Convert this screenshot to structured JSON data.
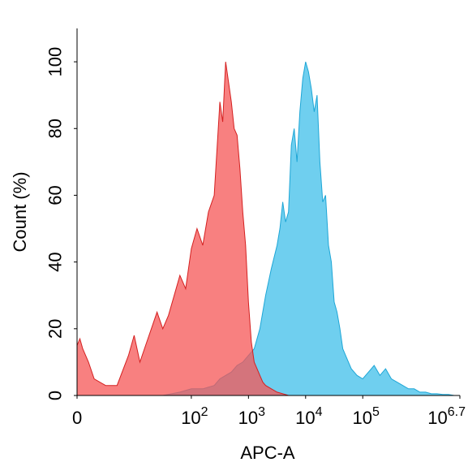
{
  "chart_data": {
    "type": "area",
    "title": "",
    "xlabel": "APC-A",
    "ylabel": "Count (%)",
    "xlim": [
      0,
      6.7
    ],
    "ylim": [
      0,
      110
    ],
    "grid": false,
    "x_ticks": [
      {
        "value": 0,
        "base": "0",
        "exp": ""
      },
      {
        "value": 2,
        "base": "10",
        "exp": "2"
      },
      {
        "value": 3,
        "base": "10",
        "exp": "3"
      },
      {
        "value": 4,
        "base": "10",
        "exp": "4"
      },
      {
        "value": 5,
        "base": "10",
        "exp": "5"
      },
      {
        "value": 6.7,
        "base": "10",
        "exp": "6.7"
      }
    ],
    "y_ticks": [
      {
        "value": 0,
        "label": "0"
      },
      {
        "value": 20,
        "label": "20"
      },
      {
        "value": 40,
        "label": "40"
      },
      {
        "value": 60,
        "label": "60"
      },
      {
        "value": 80,
        "label": "80"
      },
      {
        "value": 100,
        "label": "100"
      }
    ],
    "series": [
      {
        "color": "#3fbfea",
        "stroke": "#1ea6d6",
        "x": [
          0,
          0.3,
          0.6,
          0.9,
          1.2,
          1.5,
          1.8,
          2.0,
          2.2,
          2.4,
          2.5,
          2.6,
          2.7,
          2.8,
          2.9,
          3.0,
          3.1,
          3.2,
          3.3,
          3.4,
          3.5,
          3.55,
          3.6,
          3.65,
          3.7,
          3.75,
          3.8,
          3.85,
          3.9,
          3.95,
          4.0,
          4.05,
          4.1,
          4.15,
          4.2,
          4.25,
          4.3,
          4.35,
          4.4,
          4.45,
          4.5,
          4.55,
          4.6,
          4.65,
          4.7,
          4.75,
          4.8,
          4.9,
          5.0,
          5.1,
          5.2,
          5.3,
          5.4,
          5.5,
          5.6,
          5.7,
          5.8,
          5.9,
          6.0,
          6.1,
          6.2,
          6.3,
          6.4,
          6.5,
          6.6,
          6.7
        ],
        "y": [
          0,
          0,
          0,
          0,
          0,
          0,
          1,
          2,
          2,
          3,
          5,
          6,
          7,
          9,
          10,
          12,
          14,
          20,
          30,
          38,
          45,
          50,
          58,
          52,
          55,
          75,
          80,
          70,
          85,
          95,
          100,
          97,
          92,
          85,
          90,
          70,
          58,
          60,
          45,
          40,
          28,
          25,
          20,
          14,
          12,
          10,
          8,
          6,
          5,
          7,
          9,
          6,
          8,
          5,
          4,
          3,
          2,
          2,
          1,
          1,
          0.5,
          0.5,
          0.3,
          0.3,
          0,
          0
        ]
      },
      {
        "color": "#f55555",
        "stroke": "#d42020",
        "x": [
          0,
          0.05,
          0.1,
          0.2,
          0.3,
          0.5,
          0.7,
          0.9,
          1.0,
          1.1,
          1.2,
          1.3,
          1.4,
          1.5,
          1.6,
          1.7,
          1.8,
          1.9,
          2.0,
          2.1,
          2.2,
          2.3,
          2.4,
          2.5,
          2.55,
          2.6,
          2.65,
          2.7,
          2.75,
          2.8,
          2.85,
          2.9,
          2.95,
          3.0,
          3.05,
          3.1,
          3.15,
          3.2,
          3.25,
          3.3,
          3.4,
          3.5,
          3.6,
          3.7
        ],
        "y": [
          15,
          17,
          14,
          10,
          5,
          3,
          3,
          12,
          18,
          10,
          15,
          20,
          25,
          20,
          24,
          30,
          36,
          32,
          44,
          50,
          45,
          55,
          60,
          88,
          82,
          100,
          94,
          88,
          80,
          78,
          68,
          55,
          45,
          28,
          16,
          10,
          8,
          6,
          4,
          3,
          2,
          1,
          0.5,
          0
        ]
      }
    ]
  }
}
